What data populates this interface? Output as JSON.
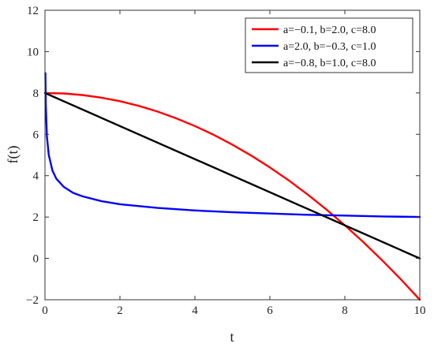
{
  "chart_data": {
    "type": "line",
    "title": "",
    "xlabel": "t",
    "ylabel": "f(t)",
    "xlim": [
      0,
      10
    ],
    "ylim": [
      -2,
      12
    ],
    "xticks": [
      "0",
      "2",
      "4",
      "6",
      "8",
      "10"
    ],
    "yticks": [
      "−2",
      "0",
      "2",
      "4",
      "6",
      "8",
      "10",
      "12"
    ],
    "grid": false,
    "legend_position": "top-right",
    "series": [
      {
        "name": "a=−0.1, b=2.0, c=8.0",
        "color": "#ff0000",
        "x": [
          0,
          0.5,
          1,
          1.5,
          2,
          2.5,
          3,
          3.5,
          4,
          4.5,
          5,
          5.5,
          6,
          6.5,
          7,
          7.5,
          8,
          8.5,
          9,
          9.5,
          10
        ],
        "y": [
          8.0,
          7.975,
          7.9,
          7.775,
          7.6,
          7.375,
          7.1,
          6.775,
          6.4,
          5.975,
          5.5,
          4.975,
          4.4,
          3.775,
          3.1,
          2.375,
          1.6,
          0.775,
          -0.1,
          -1.025,
          -2.0
        ]
      },
      {
        "name": "a=2.0, b=−0.3, c=1.0",
        "color": "#0000ff",
        "x": [
          0.01,
          0.02,
          0.05,
          0.1,
          0.2,
          0.3,
          0.5,
          0.75,
          1,
          1.5,
          2,
          3,
          4,
          5,
          6,
          7,
          8,
          9,
          10
        ],
        "y": [
          8.96,
          7.48,
          5.91,
          5.0,
          4.24,
          3.86,
          3.46,
          3.17,
          3.0,
          2.77,
          2.62,
          2.44,
          2.32,
          2.23,
          2.17,
          2.11,
          2.07,
          2.03,
          2.0
        ]
      },
      {
        "name": "a=−0.8, b=1.0, c=8.0",
        "color": "#000000",
        "x": [
          0,
          10
        ],
        "y": [
          8.0,
          0.0
        ]
      }
    ]
  }
}
